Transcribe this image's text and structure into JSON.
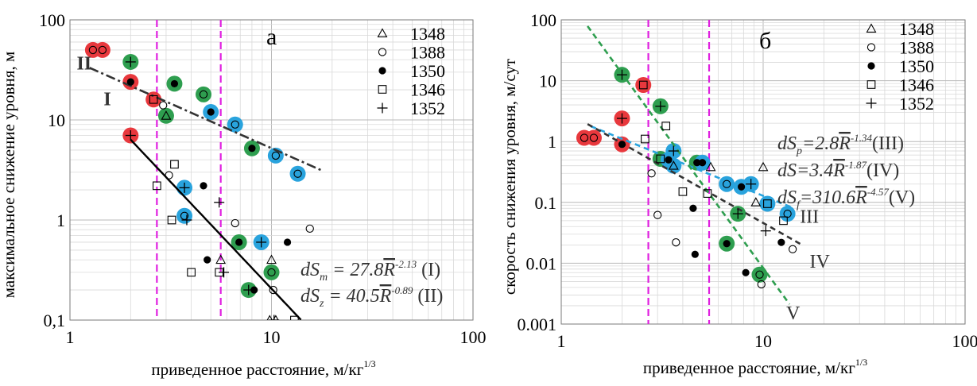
{
  "chart_data": [
    {
      "type": "scatter",
      "panel_label": "а",
      "xlabel": "приведенное расстояние, м/кг",
      "xlabel_sup": "1/3",
      "ylabel": "максимальное снижение уровня, м",
      "xscale": "log",
      "yscale": "log",
      "xlim": [
        1,
        100
      ],
      "ylim": [
        0.1,
        100
      ],
      "x_ticks": [
        {
          "v": 1,
          "label": "1"
        },
        {
          "v": 10,
          "label": "10"
        },
        {
          "v": 100,
          "label": "100"
        }
      ],
      "y_ticks": [
        {
          "v": 0.1,
          "label": "0,1"
        },
        {
          "v": 1,
          "label": "1"
        },
        {
          "v": 10,
          "label": "10"
        },
        {
          "v": 100,
          "label": "100"
        }
      ],
      "legend_position": "top-right",
      "legend": [
        {
          "marker": "triangle",
          "label": "1348"
        },
        {
          "marker": "circle-open",
          "label": "1388"
        },
        {
          "marker": "circle-filled",
          "label": "1350"
        },
        {
          "marker": "square-open",
          "label": "1346"
        },
        {
          "marker": "plus",
          "label": "1352"
        }
      ],
      "highlight_colors": {
        "red": "#e8383d",
        "green": "#2e9e4f",
        "blue": "#29a3dd"
      },
      "vlines": [
        2.7,
        5.6
      ],
      "vline_color": "#e020e0",
      "fits": [
        {
          "id": "I",
          "label": "I",
          "a": 27.8,
          "b": -2.13,
          "x_range": [
            2.0,
            14.0
          ],
          "style": "solid",
          "color": "#000000",
          "label_at": [
            1.47,
            14
          ]
        },
        {
          "id": "II",
          "label": "II",
          "a": 40.5,
          "b": -0.89,
          "x_range": [
            1.25,
            18.0
          ],
          "style": "dashdot",
          "color": "#333333",
          "label_at": [
            1.08,
            32
          ]
        }
      ],
      "equations": [
        {
          "lhs": "dS",
          "sub": "m",
          "mid": " = 27.8",
          "rbar": "R",
          "sup": "-2.13",
          "tag": " (I)"
        },
        {
          "lhs": "dS",
          "sub": "z",
          "mid": " = 40.5",
          "rbar": "R",
          "sup": "-0.89",
          "tag": " (II)"
        }
      ],
      "points": [
        {
          "x": 1.3,
          "y": 50,
          "marker": "circle-open",
          "hl": "red"
        },
        {
          "x": 1.45,
          "y": 50,
          "marker": "circle-open",
          "hl": "red"
        },
        {
          "x": 2.0,
          "y": 38,
          "marker": "plus",
          "hl": "green"
        },
        {
          "x": 2.0,
          "y": 24,
          "marker": "circle-filled",
          "hl": "red"
        },
        {
          "x": 2.0,
          "y": 7,
          "marker": "plus",
          "hl": "red"
        },
        {
          "x": 2.6,
          "y": 16,
          "marker": "square-open",
          "hl": "red"
        },
        {
          "x": 2.9,
          "y": 14,
          "marker": "circle-open",
          "hl": null
        },
        {
          "x": 3.0,
          "y": 11,
          "marker": "triangle",
          "hl": "green"
        },
        {
          "x": 3.3,
          "y": 23,
          "marker": "circle-filled",
          "hl": "green"
        },
        {
          "x": 4.6,
          "y": 18,
          "marker": "circle-open",
          "hl": "green"
        },
        {
          "x": 5.0,
          "y": 12,
          "marker": "circle-filled",
          "hl": "blue"
        },
        {
          "x": 6.6,
          "y": 9,
          "marker": "circle-open",
          "hl": "blue"
        },
        {
          "x": 8.0,
          "y": 5.2,
          "marker": "circle-filled",
          "hl": "green"
        },
        {
          "x": 10.5,
          "y": 4.4,
          "marker": "circle-open",
          "hl": "blue"
        },
        {
          "x": 13.5,
          "y": 2.9,
          "marker": "circle-open",
          "hl": "blue"
        },
        {
          "x": 2.7,
          "y": 2.2,
          "marker": "square-open",
          "hl": null
        },
        {
          "x": 3.1,
          "y": 2.8,
          "marker": "circle-open",
          "hl": null
        },
        {
          "x": 3.3,
          "y": 3.6,
          "marker": "square-open",
          "hl": null
        },
        {
          "x": 3.7,
          "y": 2.1,
          "marker": "plus",
          "hl": "blue"
        },
        {
          "x": 3.7,
          "y": 1.1,
          "marker": "circle-open",
          "hl": "blue"
        },
        {
          "x": 3.2,
          "y": 1.0,
          "marker": "square-open",
          "hl": null
        },
        {
          "x": 3.8,
          "y": 1.0,
          "marker": "plus",
          "hl": null
        },
        {
          "x": 4.6,
          "y": 2.2,
          "marker": "circle-filled",
          "hl": null
        },
        {
          "x": 5.5,
          "y": 1.5,
          "marker": "plus",
          "hl": null
        },
        {
          "x": 6.6,
          "y": 0.93,
          "marker": "circle-open",
          "hl": null
        },
        {
          "x": 6.9,
          "y": 0.6,
          "marker": "circle-filled",
          "hl": "green"
        },
        {
          "x": 8.9,
          "y": 0.6,
          "marker": "plus",
          "hl": "blue"
        },
        {
          "x": 12.0,
          "y": 0.6,
          "marker": "circle-filled",
          "hl": null
        },
        {
          "x": 15.5,
          "y": 0.82,
          "marker": "circle-open",
          "hl": null
        },
        {
          "x": 4.0,
          "y": 0.3,
          "marker": "square-open",
          "hl": null
        },
        {
          "x": 4.8,
          "y": 0.4,
          "marker": "circle-filled",
          "hl": null
        },
        {
          "x": 5.5,
          "y": 0.3,
          "marker": "square-open",
          "hl": null
        },
        {
          "x": 5.6,
          "y": 0.4,
          "marker": "triangle",
          "hl": null
        },
        {
          "x": 5.8,
          "y": 0.3,
          "marker": "plus",
          "hl": null
        },
        {
          "x": 7.7,
          "y": 0.2,
          "marker": "plus",
          "hl": "green"
        },
        {
          "x": 8.2,
          "y": 0.2,
          "marker": "circle-filled",
          "hl": null
        },
        {
          "x": 10.0,
          "y": 0.3,
          "marker": "circle-open",
          "hl": "green"
        },
        {
          "x": 10.0,
          "y": 0.4,
          "marker": "triangle",
          "hl": null
        },
        {
          "x": 10.2,
          "y": 0.2,
          "marker": "circle-open",
          "hl": null
        },
        {
          "x": 9.8,
          "y": 0.1,
          "marker": "triangle",
          "hl": null
        },
        {
          "x": 10.5,
          "y": 0.1,
          "marker": "triangle",
          "hl": null
        },
        {
          "x": 10.3,
          "y": 0.1,
          "marker": "plus",
          "hl": null
        },
        {
          "x": 13.0,
          "y": 0.1,
          "marker": "square-open",
          "hl": null
        }
      ]
    },
    {
      "type": "scatter",
      "panel_label": "б",
      "xlabel": "приведенное расстояние, м/кг",
      "xlabel_sup": "1/3",
      "ylabel": "скорость снижения уровня, м/сут",
      "xscale": "log",
      "yscale": "log",
      "xlim": [
        1,
        100
      ],
      "ylim": [
        0.001,
        100
      ],
      "x_ticks": [
        {
          "v": 1,
          "label": "1"
        },
        {
          "v": 10,
          "label": "10"
        },
        {
          "v": 100,
          "label": "100"
        }
      ],
      "y_ticks": [
        {
          "v": 0.001,
          "label": "0.001"
        },
        {
          "v": 0.01,
          "label": "0.01"
        },
        {
          "v": 0.1,
          "label": "0.1"
        },
        {
          "v": 1,
          "label": "1"
        },
        {
          "v": 10,
          "label": "10"
        },
        {
          "v": 100,
          "label": "100"
        }
      ],
      "legend_position": "top-right",
      "legend": [
        {
          "marker": "triangle",
          "label": "1348"
        },
        {
          "marker": "circle-open",
          "label": "1388"
        },
        {
          "marker": "circle-filled",
          "label": "1350"
        },
        {
          "marker": "square-open",
          "label": "1346"
        },
        {
          "marker": "plus",
          "label": "1352"
        }
      ],
      "highlight_colors": {
        "red": "#e8383d",
        "green": "#2e9e4f",
        "blue": "#29a3dd"
      },
      "vlines": [
        2.7,
        5.4
      ],
      "vline_color": "#e020e0",
      "fits": [
        {
          "id": "III",
          "label": "III",
          "a": 2.8,
          "b": -1.34,
          "x_range": [
            1.4,
            14.0
          ],
          "style": "dashed",
          "color": "#29a3dd",
          "label_at": [
            15.2,
            0.046
          ]
        },
        {
          "id": "IV",
          "label": "IV",
          "a": 3.4,
          "b": -1.87,
          "x_range": [
            1.35,
            15.5
          ],
          "style": "dashed",
          "color": "#333333",
          "label_at": [
            17.0,
            0.0085
          ]
        },
        {
          "id": "V",
          "label": "V",
          "a": 310.6,
          "b": -4.57,
          "x_range": [
            1.35,
            13.5
          ],
          "style": "dashed",
          "color": "#2e9e4f",
          "label_at": [
            13.0,
            0.0012
          ]
        }
      ],
      "equations": [
        {
          "lhs": "dS",
          "sub": "p",
          "mid": "=2.8",
          "rbar": "R",
          "sup": "-1.34",
          "tag": "(III)"
        },
        {
          "lhs": "dS",
          "sub": "",
          "mid": "=3.4",
          "rbar": "R",
          "sup": "-1.87",
          "tag": "(IV)"
        },
        {
          "lhs": "dS",
          "sub": "f",
          "mid": "=310.6",
          "rbar": "R",
          "sup": "-4.57",
          "tag": "(V)"
        }
      ],
      "points": [
        {
          "x": 1.3,
          "y": 1.15,
          "marker": "circle-open",
          "hl": "red"
        },
        {
          "x": 1.45,
          "y": 1.15,
          "marker": "circle-open",
          "hl": "red"
        },
        {
          "x": 2.0,
          "y": 0.9,
          "marker": "circle-filled",
          "hl": "red"
        },
        {
          "x": 2.0,
          "y": 2.4,
          "marker": "plus",
          "hl": "red"
        },
        {
          "x": 2.0,
          "y": 12.5,
          "marker": "plus",
          "hl": "green"
        },
        {
          "x": 2.55,
          "y": 8.5,
          "marker": "square-open",
          "hl": "red"
        },
        {
          "x": 2.6,
          "y": 1.1,
          "marker": "square-open",
          "hl": null
        },
        {
          "x": 2.8,
          "y": 0.3,
          "marker": "circle-open",
          "hl": null
        },
        {
          "x": 3.0,
          "y": 0.062,
          "marker": "circle-open",
          "hl": null
        },
        {
          "x": 3.1,
          "y": 3.8,
          "marker": "plus",
          "hl": "green"
        },
        {
          "x": 3.1,
          "y": 0.52,
          "marker": "square-open",
          "hl": "green"
        },
        {
          "x": 3.3,
          "y": 1.8,
          "marker": "square-open",
          "hl": null
        },
        {
          "x": 3.4,
          "y": 0.5,
          "marker": "circle-filled",
          "hl": "blue"
        },
        {
          "x": 3.6,
          "y": 0.7,
          "marker": "plus",
          "hl": "blue"
        },
        {
          "x": 3.6,
          "y": 0.4,
          "marker": "triangle",
          "hl": "blue"
        },
        {
          "x": 3.7,
          "y": 0.022,
          "marker": "circle-open",
          "hl": null
        },
        {
          "x": 4.0,
          "y": 0.15,
          "marker": "square-open",
          "hl": null
        },
        {
          "x": 4.5,
          "y": 0.08,
          "marker": "circle-filled",
          "hl": null
        },
        {
          "x": 4.6,
          "y": 0.014,
          "marker": "circle-filled",
          "hl": null
        },
        {
          "x": 4.7,
          "y": 0.45,
          "marker": "circle-filled",
          "hl": "green"
        },
        {
          "x": 5.0,
          "y": 0.45,
          "marker": "circle-filled",
          "hl": "blue"
        },
        {
          "x": 5.5,
          "y": 0.38,
          "marker": "triangle",
          "hl": null
        },
        {
          "x": 5.3,
          "y": 0.14,
          "marker": "square-open",
          "hl": null
        },
        {
          "x": 6.6,
          "y": 0.2,
          "marker": "circle-open",
          "hl": "blue"
        },
        {
          "x": 6.6,
          "y": 0.021,
          "marker": "circle-filled",
          "hl": "green"
        },
        {
          "x": 7.5,
          "y": 0.065,
          "marker": "plus",
          "hl": "green"
        },
        {
          "x": 7.8,
          "y": 0.18,
          "marker": "circle-filled",
          "hl": "blue"
        },
        {
          "x": 8.2,
          "y": 0.007,
          "marker": "circle-filled",
          "hl": null
        },
        {
          "x": 8.7,
          "y": 0.2,
          "marker": "plus",
          "hl": "blue"
        },
        {
          "x": 9.2,
          "y": 0.1,
          "marker": "triangle",
          "hl": null
        },
        {
          "x": 9.6,
          "y": 0.0065,
          "marker": "circle-open",
          "hl": "green"
        },
        {
          "x": 9.8,
          "y": 0.0045,
          "marker": "circle-open",
          "hl": null
        },
        {
          "x": 10.0,
          "y": 0.38,
          "marker": "triangle",
          "hl": null
        },
        {
          "x": 10.5,
          "y": 0.095,
          "marker": "square-open",
          "hl": "blue"
        },
        {
          "x": 10.3,
          "y": 0.034,
          "marker": "plus",
          "hl": null
        },
        {
          "x": 12.3,
          "y": 0.022,
          "marker": "circle-filled",
          "hl": null
        },
        {
          "x": 12.6,
          "y": 0.05,
          "marker": "square-open",
          "hl": null
        },
        {
          "x": 13.2,
          "y": 0.065,
          "marker": "circle-open",
          "hl": "blue"
        },
        {
          "x": 14.0,
          "y": 0.017,
          "marker": "circle-open",
          "hl": null
        }
      ]
    }
  ]
}
